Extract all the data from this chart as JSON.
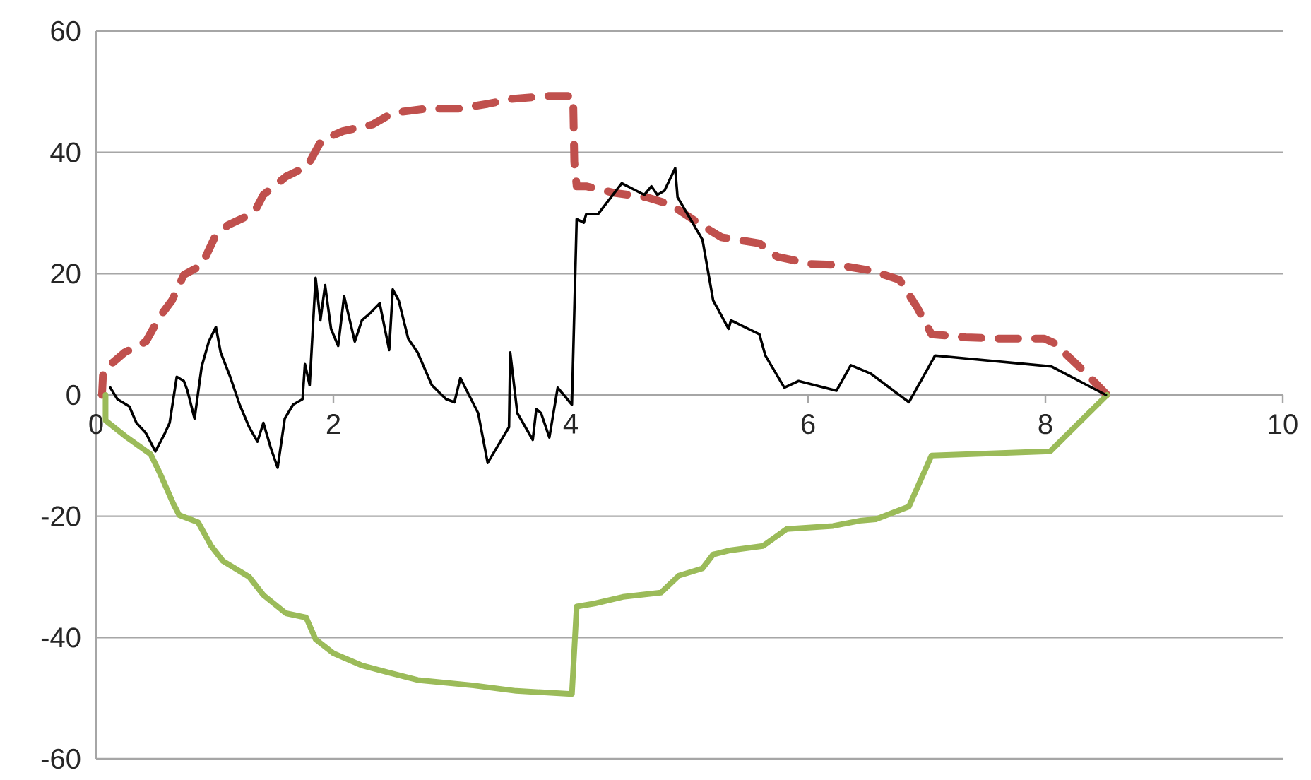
{
  "chart_data": {
    "type": "line",
    "xlim": [
      0,
      10
    ],
    "ylim": [
      -60,
      60
    ],
    "xticks": [
      0,
      2,
      4,
      6,
      8,
      10
    ],
    "yticks": [
      -60,
      -40,
      -20,
      0,
      20,
      40,
      60
    ],
    "grid": "y",
    "marker": "none",
    "series": [
      {
        "color": "#c0504d",
        "line_style": "dashed",
        "x": [
          0.05,
          0.06,
          0.24,
          0.42,
          0.54,
          0.64,
          0.74,
          0.89,
          1.0,
          1.11,
          1.33,
          1.41,
          1.6,
          1.78,
          1.9,
          2.08,
          2.33,
          2.5,
          2.78,
          3.05,
          3.3,
          3.5,
          3.8,
          4.02,
          4.03,
          4.05,
          4.13,
          4.37,
          4.64,
          4.84,
          5.11,
          5.27,
          5.59,
          5.74,
          6.02,
          6.26,
          6.53,
          6.77,
          6.92,
          7.04,
          7.33,
          7.6,
          7.99,
          8.07,
          8.31,
          8.52
        ],
        "values": [
          0,
          4,
          7,
          8.8,
          13,
          15.6,
          19.8,
          21.4,
          26,
          28,
          30,
          33,
          36,
          37.7,
          42,
          43.5,
          44.6,
          46.5,
          47.2,
          47.2,
          48,
          48.8,
          49.3,
          49.3,
          38.4,
          34.4,
          34.4,
          33.3,
          32.6,
          31.4,
          27.9,
          26,
          25,
          22.8,
          21.6,
          21.4,
          20.5,
          19,
          14.4,
          10,
          9.5,
          9.3,
          9.3,
          8.6,
          4.2,
          0
        ]
      },
      {
        "color": "#9bbb59",
        "line_style": "solid",
        "x": [
          0.08,
          0.08,
          0.26,
          0.46,
          0.54,
          0.65,
          0.7,
          0.86,
          0.97,
          1.07,
          1.29,
          1.41,
          1.6,
          1.77,
          1.85,
          2.0,
          2.24,
          2.47,
          2.71,
          3.18,
          3.54,
          4.01,
          4.05,
          4.2,
          4.44,
          4.76,
          4.91,
          5.11,
          5.2,
          5.35,
          5.62,
          5.82,
          6.21,
          6.45,
          6.57,
          6.85,
          7.04,
          8.04,
          8.52
        ],
        "values": [
          0,
          -4.2,
          -7,
          -9.8,
          -13,
          -17.9,
          -19.8,
          -21,
          -24.9,
          -27.4,
          -30,
          -33,
          -36,
          -36.7,
          -40.3,
          -42.6,
          -44.6,
          -45.8,
          -47,
          -47.9,
          -48.8,
          -49.3,
          -34.9,
          -34.4,
          -33.3,
          -32.6,
          -29.8,
          -28.6,
          -26.3,
          -25.6,
          -24.9,
          -22.1,
          -21.6,
          -20.7,
          -20.5,
          -18.4,
          -10,
          -9.3,
          0
        ]
      },
      {
        "color": "#000000",
        "line_style": "solid",
        "x": [
          0.12,
          0.18,
          0.28,
          0.34,
          0.42,
          0.5,
          0.58,
          0.62,
          0.68,
          0.74,
          0.77,
          0.83,
          0.89,
          0.95,
          1.01,
          1.05,
          1.13,
          1.21,
          1.29,
          1.36,
          1.41,
          1.47,
          1.53,
          1.59,
          1.66,
          1.74,
          1.76,
          1.8,
          1.85,
          1.89,
          1.93,
          1.98,
          2.04,
          2.09,
          2.18,
          2.24,
          2.31,
          2.39,
          2.47,
          2.5,
          2.55,
          2.63,
          2.71,
          2.83,
          2.95,
          3.02,
          3.07,
          3.22,
          3.3,
          3.48,
          3.49,
          3.55,
          3.68,
          3.71,
          3.75,
          3.82,
          3.89,
          4.01,
          4.05,
          4.11,
          4.13,
          4.23,
          4.43,
          4.62,
          4.68,
          4.73,
          4.79,
          4.88,
          4.9,
          5.11,
          5.2,
          5.33,
          5.35,
          5.59,
          5.64,
          5.8,
          5.92,
          6.24,
          6.36,
          6.53,
          6.85,
          7.07,
          8.05,
          8.51
        ],
        "values": [
          1.2,
          -0.7,
          -1.9,
          -4.6,
          -6.3,
          -9.3,
          -6.3,
          -4.6,
          3,
          2.3,
          0.7,
          -3.9,
          4.7,
          8.8,
          11.2,
          7,
          3,
          -1.6,
          -5.3,
          -7.7,
          -4.6,
          -8.6,
          -12,
          -3.9,
          -1.6,
          -0.7,
          5.1,
          1.6,
          19.3,
          12.3,
          18.1,
          10.9,
          8.1,
          16.3,
          8.8,
          12.3,
          13.5,
          15.1,
          7.4,
          17.4,
          15.6,
          9.3,
          7,
          1.6,
          -0.7,
          -1.2,
          2.8,
          -3,
          -11.2,
          -5.3,
          7,
          -3,
          -7.4,
          -2.3,
          -3,
          -7,
          1.2,
          -1.6,
          29,
          28.4,
          29.8,
          29.8,
          34.9,
          33,
          34.4,
          33,
          33.7,
          37.4,
          32.6,
          25.6,
          15.6,
          10.9,
          12.3,
          10,
          6.5,
          1.2,
          2.3,
          0.7,
          4.9,
          3.5,
          -1.2,
          6.5,
          4.7,
          0
        ]
      }
    ]
  }
}
